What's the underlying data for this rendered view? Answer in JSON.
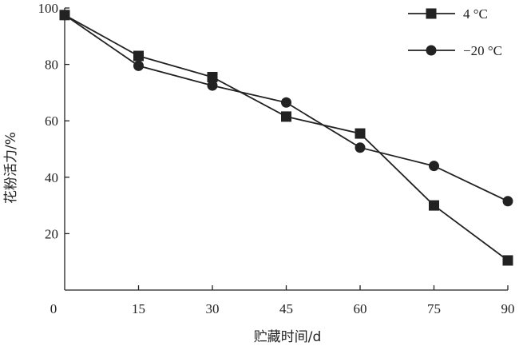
{
  "chart_data": {
    "type": "line",
    "title": "",
    "xlabel": "贮藏时间/d",
    "ylabel": "花粉活力/%",
    "x_ticks": [
      0,
      15,
      30,
      45,
      60,
      75,
      90
    ],
    "y_ticks": [
      20,
      40,
      60,
      80,
      100
    ],
    "xlim": [
      0,
      90
    ],
    "ylim": [
      0,
      100
    ],
    "grid": false,
    "legend_position": "top-right",
    "series": [
      {
        "name": "4 °C",
        "marker": "square",
        "color": "#222222",
        "points": [
          {
            "x": 0,
            "y": 97.5
          },
          {
            "x": 15,
            "y": 83
          },
          {
            "x": 30,
            "y": 75.5
          },
          {
            "x": 45,
            "y": 61.5
          },
          {
            "x": 60,
            "y": 55.5
          },
          {
            "x": 75,
            "y": 30
          },
          {
            "x": 90,
            "y": 10.5
          }
        ]
      },
      {
        "name": "−20 °C",
        "marker": "circle",
        "color": "#222222",
        "points": [
          {
            "x": 0,
            "y": 97.5
          },
          {
            "x": 15,
            "y": 79.5
          },
          {
            "x": 30,
            "y": 72.5
          },
          {
            "x": 45,
            "y": 66.5
          },
          {
            "x": 60,
            "y": 50.5
          },
          {
            "x": 75,
            "y": 44
          },
          {
            "x": 90,
            "y": 31.5
          }
        ]
      }
    ]
  }
}
